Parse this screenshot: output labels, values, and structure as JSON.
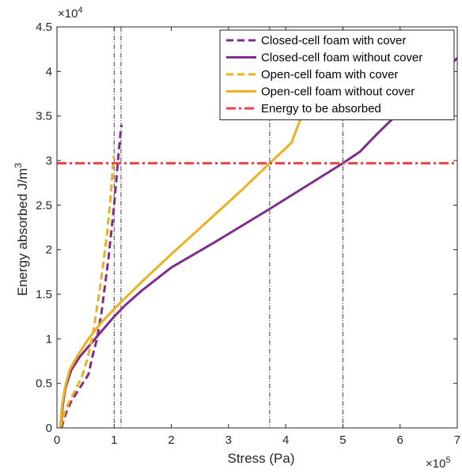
{
  "chart_data": {
    "type": "line",
    "xlabel": "Stress (Pa)",
    "ylabel": "Energy absorbed J/m³",
    "x_exponent_label": "×10",
    "x_exponent_power": "5",
    "y_exponent_label": "×10",
    "y_exponent_power": "4",
    "xlim": [
      0,
      700000
    ],
    "ylim": [
      0,
      45000
    ],
    "x_tick_values": [
      0,
      100000,
      200000,
      300000,
      400000,
      500000,
      600000,
      700000
    ],
    "x_tick_labels": [
      "0",
      "1",
      "2",
      "3",
      "4",
      "5",
      "6",
      "7"
    ],
    "y_tick_values": [
      0,
      5000,
      10000,
      15000,
      20000,
      25000,
      30000,
      35000,
      40000,
      45000
    ],
    "y_tick_labels": [
      "0",
      "0.5",
      "1",
      "1.5",
      "2",
      "2.5",
      "3",
      "3.5",
      "4",
      "4.5"
    ],
    "grid": false,
    "legend_position": "top-right",
    "series": [
      {
        "name": "Closed-cell foam with cover",
        "color": "#7E2F8E",
        "dash": "dashed",
        "x": [
          8000,
          12000,
          18000,
          25000,
          35000,
          45000,
          55000,
          62000,
          70000,
          78000,
          84000,
          90000,
          95000,
          100000,
          104000,
          108000,
          111000,
          113000
        ],
        "y": [
          0,
          1000,
          2000,
          3000,
          4000,
          5000,
          6000,
          8000,
          10000,
          13000,
          16000,
          19000,
          22000,
          25000,
          28000,
          31000,
          33000,
          34000
        ]
      },
      {
        "name": "Closed-cell foam without cover",
        "color": "#7E2F8E",
        "dash": "solid",
        "x": [
          7000,
          8000,
          10000,
          15000,
          25000,
          40000,
          60000,
          80000,
          100000,
          120000,
          150000,
          200000,
          280000,
          370000,
          500000,
          530000,
          560000,
          600000,
          650000,
          700000
        ],
        "y": [
          0,
          1000,
          2500,
          4500,
          6500,
          8000,
          9500,
          11000,
          12500,
          13800,
          15500,
          18000,
          21000,
          24500,
          29700,
          31000,
          33000,
          35500,
          38500,
          41500
        ]
      },
      {
        "name": "Open-cell foam with cover",
        "color": "#EDB120",
        "dash": "dashed",
        "x": [
          6000,
          10000,
          15000,
          22000,
          30000,
          38000,
          45000,
          52000,
          58000,
          64000,
          70000,
          76000,
          82000,
          88000,
          94000,
          99000
        ],
        "y": [
          0,
          1000,
          2000,
          3000,
          4000,
          5000,
          6000,
          7500,
          9000,
          11000,
          13500,
          16000,
          19000,
          22000,
          26000,
          30500
        ]
      },
      {
        "name": "Open-cell foam without cover",
        "color": "#EDB120",
        "dash": "solid",
        "x": [
          6000,
          7000,
          9000,
          14000,
          22000,
          35000,
          55000,
          80000,
          110000,
          150000,
          200000,
          260000,
          320000,
          372000,
          410000,
          425000,
          435000,
          445000
        ],
        "y": [
          0,
          1000,
          2500,
          4500,
          6500,
          8000,
          10000,
          12000,
          14000,
          16500,
          19500,
          23000,
          26500,
          29700,
          32000,
          34500,
          37000,
          40000
        ]
      },
      {
        "name": "Energy to be absorbed",
        "color": "#F24040",
        "dash": "dashdot",
        "x": [
          0,
          700000
        ],
        "y": [
          29700,
          29700
        ]
      }
    ],
    "vertical_reference_lines": [
      100000,
      112000,
      372000,
      500000
    ]
  }
}
